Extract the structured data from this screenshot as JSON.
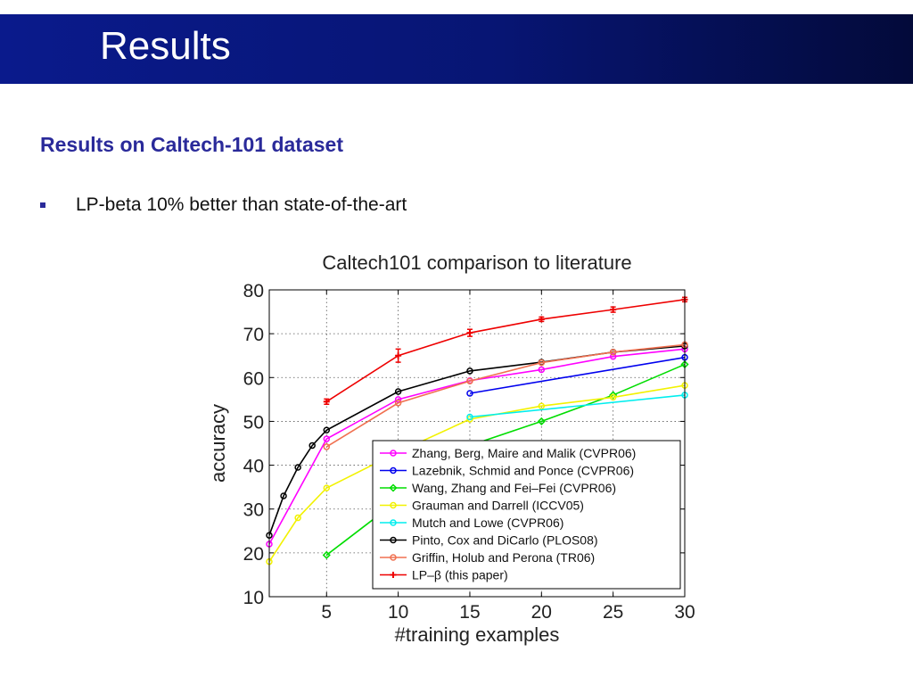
{
  "slide": {
    "title": "Results",
    "subtitle": "Results on Caltech-101 dataset",
    "bullets": [
      "LP-beta 10% better than state-of-the-art"
    ]
  },
  "colors": {
    "banner": "#071573",
    "subtitle": "#2a2a9a"
  },
  "chart_data": {
    "type": "line",
    "title": "Caltech101 comparison to literature",
    "xlabel": "#training examples",
    "ylabel": "accuracy",
    "xlim": [
      1,
      30
    ],
    "ylim": [
      10,
      80
    ],
    "xticks": [
      5,
      10,
      15,
      20,
      25,
      30
    ],
    "yticks": [
      10,
      20,
      30,
      40,
      50,
      60,
      70,
      80
    ],
    "grid": true,
    "legend_position": "bottom-right",
    "series": [
      {
        "name": "Zhang, Berg, Maire and Malik (CVPR06)",
        "color": "#ff00ff",
        "marker": "circle",
        "x": [
          1,
          5,
          10,
          15,
          20,
          25,
          30
        ],
        "y": [
          22,
          46,
          55,
          59.3,
          61.8,
          64.8,
          66.5
        ]
      },
      {
        "name": "Lazebnik, Schmid and Ponce (CVPR06)",
        "color": "#0000ee",
        "marker": "circle",
        "x": [
          15,
          30
        ],
        "y": [
          56.4,
          64.6
        ]
      },
      {
        "name": "Wang, Zhang and Fei–Fei (CVPR06)",
        "color": "#00dd00",
        "marker": "diamond",
        "x": [
          5,
          15,
          20,
          25,
          30
        ],
        "y": [
          19.5,
          44.5,
          50,
          56,
          63
        ]
      },
      {
        "name": "Grauman and Darrell (ICCV05)",
        "color": "#f2f200",
        "marker": "circle",
        "x": [
          1,
          3,
          5,
          10,
          15,
          20,
          25,
          30
        ],
        "y": [
          18,
          28,
          34.8,
          43,
          50.5,
          53.5,
          55.5,
          58.2
        ]
      },
      {
        "name": "Mutch and Lowe (CVPR06)",
        "color": "#00eeee",
        "marker": "circle",
        "x": [
          15,
          30
        ],
        "y": [
          51,
          56
        ]
      },
      {
        "name": "Pinto, Cox and DiCarlo (PLOS08)",
        "color": "#000000",
        "marker": "circle",
        "x": [
          1,
          2,
          3,
          4,
          5,
          10,
          15,
          20,
          25,
          30
        ],
        "y": [
          24,
          33,
          39.5,
          44.5,
          48,
          56.8,
          61.5,
          63.5,
          65.8,
          67.2
        ]
      },
      {
        "name": "Griffin, Holub and Perona (TR06)",
        "color": "#f07050",
        "marker": "circle",
        "x": [
          5,
          10,
          15,
          20,
          25,
          30
        ],
        "y": [
          44.2,
          54.2,
          59.2,
          63.4,
          65.8,
          67.5
        ]
      },
      {
        "name": "LP–β (this paper)",
        "color": "#ee0000",
        "marker": "plus",
        "x": [
          5,
          10,
          15,
          20,
          25,
          30
        ],
        "y": [
          54.5,
          65,
          70.2,
          73.3,
          75.5,
          77.8
        ],
        "error": [
          0.6,
          1.5,
          0.8,
          0.5,
          0.6,
          0.5
        ]
      }
    ]
  }
}
